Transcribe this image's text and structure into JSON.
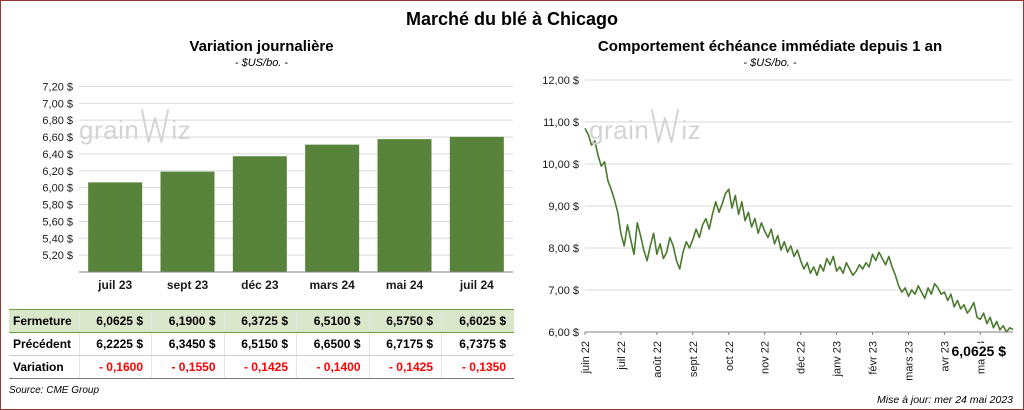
{
  "page": {
    "title": "Marché du blé à Chicago",
    "source": "Source: CME Group",
    "updated": "Mise à jour: mer 24 mai 2023",
    "watermark": {
      "pre": "grain",
      "post": "iz"
    }
  },
  "colors": {
    "bar": "#58833a",
    "line": "#4a7a2e",
    "grid": "#d9d9d9",
    "axis": "#808080",
    "highlight_bg": "#dbe7cb",
    "highlight_border": "#71a03f",
    "negative": "#ff0000",
    "frame_border": "#953735",
    "watermark": "#d4d4d4"
  },
  "chart_data": [
    {
      "type": "bar",
      "title": "Variation  journalière",
      "subtitle": "- $US/bo. -",
      "categories": [
        "juil 23",
        "sept 23",
        "déc 23",
        "mars 24",
        "mai 24",
        "juil 24"
      ],
      "values": [
        6.0625,
        6.19,
        6.3725,
        6.51,
        6.575,
        6.6025
      ],
      "ylim": [
        5.0,
        7.3
      ],
      "ytick_values": [
        5.2,
        5.4,
        5.6,
        5.8,
        6.0,
        6.2,
        6.4,
        6.6,
        6.8,
        7.0,
        7.2
      ],
      "ytick_labels": [
        "5,20 $",
        "5,40 $",
        "5,60 $",
        "5,80 $",
        "6,00 $",
        "6,20 $",
        "6,40 $",
        "6,60 $",
        "6,80 $",
        "7,00 $",
        "7,20 $"
      ],
      "grid": true,
      "legend": "none"
    },
    {
      "type": "line",
      "title": "Comportement  échéance  immédiate  depuis 1 an",
      "subtitle": "- $US/bo. -",
      "x_labels": [
        "juin 22",
        "juil 22",
        "août 22",
        "sept 22",
        "oct 22",
        "nov 22",
        "déc 22",
        "janv 23",
        "févr 23",
        "mars 23",
        "avr 23",
        "mai 23"
      ],
      "values": [
        10.85,
        10.7,
        10.45,
        10.55,
        10.2,
        9.95,
        10.05,
        9.6,
        9.4,
        9.15,
        8.85,
        8.35,
        8.05,
        8.55,
        8.2,
        7.85,
        8.6,
        8.3,
        7.95,
        7.7,
        8.05,
        8.35,
        7.85,
        8.1,
        7.75,
        7.9,
        8.25,
        8.05,
        7.7,
        7.5,
        7.9,
        8.15,
        8.0,
        8.2,
        8.45,
        8.25,
        8.55,
        8.7,
        8.45,
        8.8,
        9.1,
        8.85,
        9.05,
        9.3,
        9.4,
        8.95,
        9.25,
        8.8,
        9.1,
        8.65,
        8.85,
        8.5,
        8.7,
        8.35,
        8.6,
        8.4,
        8.25,
        8.45,
        8.1,
        8.3,
        7.95,
        8.15,
        7.9,
        8.05,
        7.8,
        7.95,
        7.7,
        7.5,
        7.65,
        7.4,
        7.55,
        7.35,
        7.6,
        7.45,
        7.75,
        7.6,
        7.8,
        7.45,
        7.55,
        7.4,
        7.65,
        7.5,
        7.35,
        7.45,
        7.6,
        7.5,
        7.65,
        7.55,
        7.85,
        7.7,
        7.9,
        7.75,
        7.6,
        7.8,
        7.55,
        7.35,
        7.1,
        6.95,
        7.05,
        6.85,
        7.0,
        6.9,
        7.1,
        6.95,
        6.8,
        7.05,
        6.9,
        7.15,
        7.05,
        6.9,
        6.95,
        6.75,
        6.9,
        6.6,
        6.75,
        6.55,
        6.65,
        6.45,
        6.55,
        6.7,
        6.35,
        6.3,
        6.45,
        6.2,
        6.35,
        6.1,
        6.25,
        6.05,
        6.15,
        6.0,
        6.1,
        6.0625
      ],
      "ylim": [
        6,
        12
      ],
      "ytick_values": [
        6,
        7,
        8,
        9,
        10,
        11,
        12
      ],
      "ytick_labels": [
        "6,00 $",
        "7,00 $",
        "8,00 $",
        "9,00 $",
        "10,00 $",
        "11,00 $",
        "12,00 $"
      ],
      "annotation": "6,0625 $",
      "last_value": 6.0625,
      "grid": true,
      "legend": "none"
    }
  ],
  "summary_table": {
    "columns": [
      "juil 23",
      "sept 23",
      "déc 23",
      "mars 24",
      "mai 24",
      "juil 24"
    ],
    "rows": [
      {
        "label": "Fermeture",
        "values": [
          "6,0625  $",
          "6,1900  $",
          "6,3725  $",
          "6,5100  $",
          "6,5750  $",
          "6,6025  $"
        ],
        "style": "highlight"
      },
      {
        "label": "Précédent",
        "values": [
          "6,2225  $",
          "6,3450  $",
          "6,5150  $",
          "6,6500  $",
          "6,7175  $",
          "6,7375  $"
        ],
        "style": "normal"
      },
      {
        "label": "Variation",
        "values": [
          "- 0,1600",
          "- 0,1550",
          "- 0,1425",
          "- 0,1400",
          "- 0,1425",
          "- 0,1350"
        ],
        "style": "negative"
      }
    ]
  }
}
